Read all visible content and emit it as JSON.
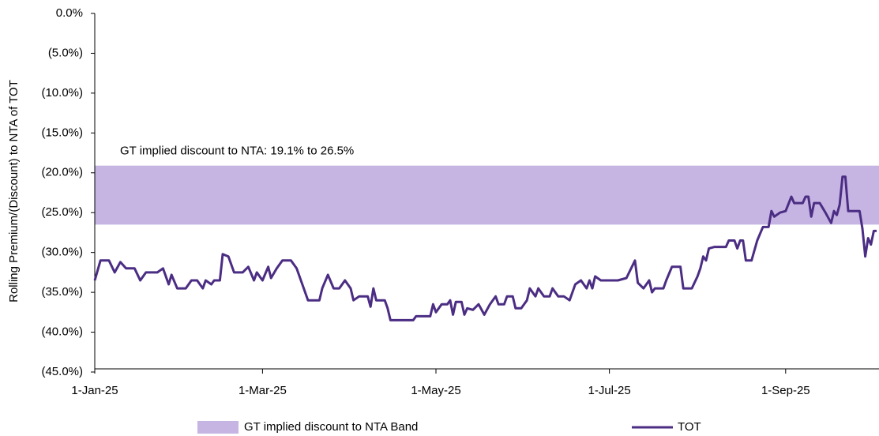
{
  "chart_data": {
    "type": "line",
    "y_label": "Rolling Premium/(Discount) to NTA of TOT",
    "annotation": "GT implied discount to NTA: 19.1% to 26.5%",
    "band": {
      "name": "GT implied discount to NTA Band",
      "color": "#c6b5e3",
      "range": [
        -19.1,
        -26.5
      ]
    },
    "xlim": [
      "2025-01-01",
      "2025-10-03"
    ],
    "xticks": [
      {
        "value": "2025-01-01",
        "label": "1-Jan-25"
      },
      {
        "value": "2025-03-01",
        "label": "1-Mar-25"
      },
      {
        "value": "2025-05-01",
        "label": "1-May-25"
      },
      {
        "value": "2025-07-01",
        "label": "1-Jul-25"
      },
      {
        "value": "2025-09-01",
        "label": "1-Sep-25"
      }
    ],
    "ylim": [
      -45,
      0
    ],
    "yticks": [
      {
        "value": 0,
        "label": "0.0%"
      },
      {
        "value": -5,
        "label": "(5.0%)"
      },
      {
        "value": -10,
        "label": "(10.0%)"
      },
      {
        "value": -15,
        "label": "(15.0%)"
      },
      {
        "value": -20,
        "label": "(20.0%)"
      },
      {
        "value": -25,
        "label": "(25.0%)"
      },
      {
        "value": -30,
        "label": "(30.0%)"
      },
      {
        "value": -35,
        "label": "(35.0%)"
      },
      {
        "value": -40,
        "label": "(40.0%)"
      },
      {
        "value": -45,
        "label": "(45.0%)"
      }
    ],
    "x": [
      "2025-01-01",
      "2025-01-03",
      "2025-01-06",
      "2025-01-08",
      "2025-01-10",
      "2025-01-12",
      "2025-01-15",
      "2025-01-17",
      "2025-01-19",
      "2025-01-23",
      "2025-01-25",
      "2025-01-27",
      "2025-01-28",
      "2025-01-30",
      "2025-02-02",
      "2025-02-04",
      "2025-02-06",
      "2025-02-08",
      "2025-02-09",
      "2025-02-11",
      "2025-02-12",
      "2025-02-14",
      "2025-02-15",
      "2025-02-17",
      "2025-02-19",
      "2025-02-22",
      "2025-02-24",
      "2025-02-26",
      "2025-02-27",
      "2025-03-01",
      "2025-03-03",
      "2025-03-04",
      "2025-03-06",
      "2025-03-08",
      "2025-03-11",
      "2025-03-13",
      "2025-03-15",
      "2025-03-17",
      "2025-03-21",
      "2025-03-22",
      "2025-03-24",
      "2025-03-26",
      "2025-03-28",
      "2025-03-30",
      "2025-04-01",
      "2025-04-02",
      "2025-04-04",
      "2025-04-07",
      "2025-04-08",
      "2025-04-09",
      "2025-04-10",
      "2025-04-13",
      "2025-04-14",
      "2025-04-15",
      "2025-04-23",
      "2025-04-24",
      "2025-04-29",
      "2025-04-30",
      "2025-05-01",
      "2025-05-03",
      "2025-05-05",
      "2025-05-06",
      "2025-05-07",
      "2025-05-08",
      "2025-05-10",
      "2025-05-11",
      "2025-05-12",
      "2025-05-14",
      "2025-05-16",
      "2025-05-18",
      "2025-05-20",
      "2025-05-22",
      "2025-05-23",
      "2025-05-25",
      "2025-05-26",
      "2025-05-28",
      "2025-05-29",
      "2025-05-31",
      "2025-06-02",
      "2025-06-03",
      "2025-06-05",
      "2025-06-06",
      "2025-06-08",
      "2025-06-10",
      "2025-06-11",
      "2025-06-13",
      "2025-06-15",
      "2025-06-17",
      "2025-06-19",
      "2025-06-21",
      "2025-06-23",
      "2025-06-24",
      "2025-06-25",
      "2025-06-26",
      "2025-06-28",
      "2025-06-30",
      "2025-07-04",
      "2025-07-07",
      "2025-07-10",
      "2025-07-11",
      "2025-07-13",
      "2025-07-15",
      "2025-07-16",
      "2025-07-17",
      "2025-07-20",
      "2025-07-21",
      "2025-07-23",
      "2025-07-26",
      "2025-07-27",
      "2025-07-30",
      "2025-08-01",
      "2025-08-02",
      "2025-08-03",
      "2025-08-04",
      "2025-08-05",
      "2025-08-07",
      "2025-08-11",
      "2025-08-12",
      "2025-08-14",
      "2025-08-15",
      "2025-08-16",
      "2025-08-17",
      "2025-08-18",
      "2025-08-20",
      "2025-08-22",
      "2025-08-24",
      "2025-08-26",
      "2025-08-27",
      "2025-08-28",
      "2025-08-30",
      "2025-09-01",
      "2025-09-03",
      "2025-09-04",
      "2025-09-07",
      "2025-09-08",
      "2025-09-09",
      "2025-09-10",
      "2025-09-11",
      "2025-09-13",
      "2025-09-15",
      "2025-09-17",
      "2025-09-18",
      "2025-09-19",
      "2025-09-20",
      "2025-09-21",
      "2025-09-22",
      "2025-09-23",
      "2025-09-27",
      "2025-09-28",
      "2025-09-29",
      "2025-09-30",
      "2025-10-01",
      "2025-10-02",
      "2025-10-03"
    ],
    "series": [
      {
        "name": "TOT",
        "color": "#4b2d83",
        "values": [
          -33.5,
          -31,
          -31,
          -32.5,
          -31.2,
          -32,
          -32,
          -33.5,
          -32.5,
          -32.5,
          -32,
          -34,
          -32.8,
          -34.5,
          -34.5,
          -33.5,
          -33.5,
          -34.5,
          -33.5,
          -34,
          -33.5,
          -33.5,
          -30.2,
          -30.5,
          -32.5,
          -32.5,
          -31.8,
          -33.5,
          -32.5,
          -33.5,
          -31.8,
          -33.2,
          -32,
          -31,
          -31,
          -32,
          -34,
          -36,
          -36,
          -34.5,
          -32.8,
          -34.5,
          -34.5,
          -33.5,
          -34.5,
          -36,
          -35.5,
          -35.5,
          -36.8,
          -34.5,
          -36,
          -36,
          -37,
          -38.5,
          -38.5,
          -38,
          -38,
          -36.5,
          -37.5,
          -36.5,
          -36.5,
          -36,
          -37.8,
          -36.2,
          -36.2,
          -37.8,
          -37,
          -37.2,
          -36.5,
          -37.8,
          -36.5,
          -35.5,
          -36.5,
          -36.5,
          -35.5,
          -35.5,
          -37,
          -37,
          -36,
          -34.5,
          -35.5,
          -34.5,
          -35.5,
          -35.5,
          -34.5,
          -35.5,
          -35.5,
          -36,
          -34,
          -33.5,
          -34.5,
          -33.5,
          -34.5,
          -33,
          -33.5,
          -33.5,
          -33.5,
          -33.2,
          -31,
          -33.8,
          -34.5,
          -33.5,
          -35,
          -34.5,
          -34.5,
          -33.5,
          -31.8,
          -31.8,
          -34.5,
          -34.5,
          -33,
          -32,
          -30.5,
          -31,
          -29.5,
          -29.3,
          -29.3,
          -28.5,
          -28.5,
          -29.5,
          -28.5,
          -28.5,
          -31,
          -31,
          -28.5,
          -26.8,
          -26.8,
          -24.8,
          -25.5,
          -25,
          -24.8,
          -23,
          -23.8,
          -23.8,
          -23,
          -23,
          -25.5,
          -23.8,
          -23.8,
          -25,
          -26.3,
          -24.8,
          -25.3,
          -24,
          -20.5,
          -20.5,
          -24.8,
          -24.8,
          -27,
          -30.5,
          -28.2,
          -29,
          -27.3,
          -27.3
        ]
      }
    ]
  }
}
